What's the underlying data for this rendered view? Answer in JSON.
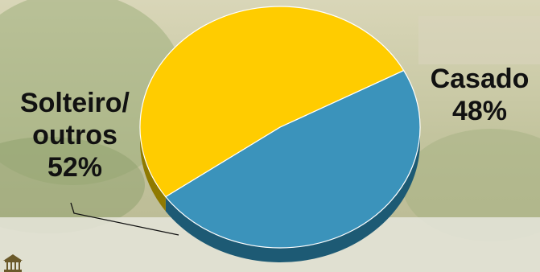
{
  "chart_data": {
    "type": "pie",
    "title": "",
    "three_d": true,
    "start_angle_deg": -28,
    "slices": [
      {
        "label_lines": [
          "Casado"
        ],
        "value": 48,
        "value_text": "48%",
        "color": "#3b93bb",
        "side_color": "#1d5a74"
      },
      {
        "label_lines": [
          "Solteiro/",
          "outros"
        ],
        "value": 52,
        "value_text": "52%",
        "color": "#ffcc00",
        "side_color": "#8f7a00"
      }
    ],
    "leader_line": true
  },
  "colors": {
    "background": "#c9c9a6",
    "edge": "#ffffff"
  },
  "icons": {
    "logo": "building-logo-icon"
  }
}
